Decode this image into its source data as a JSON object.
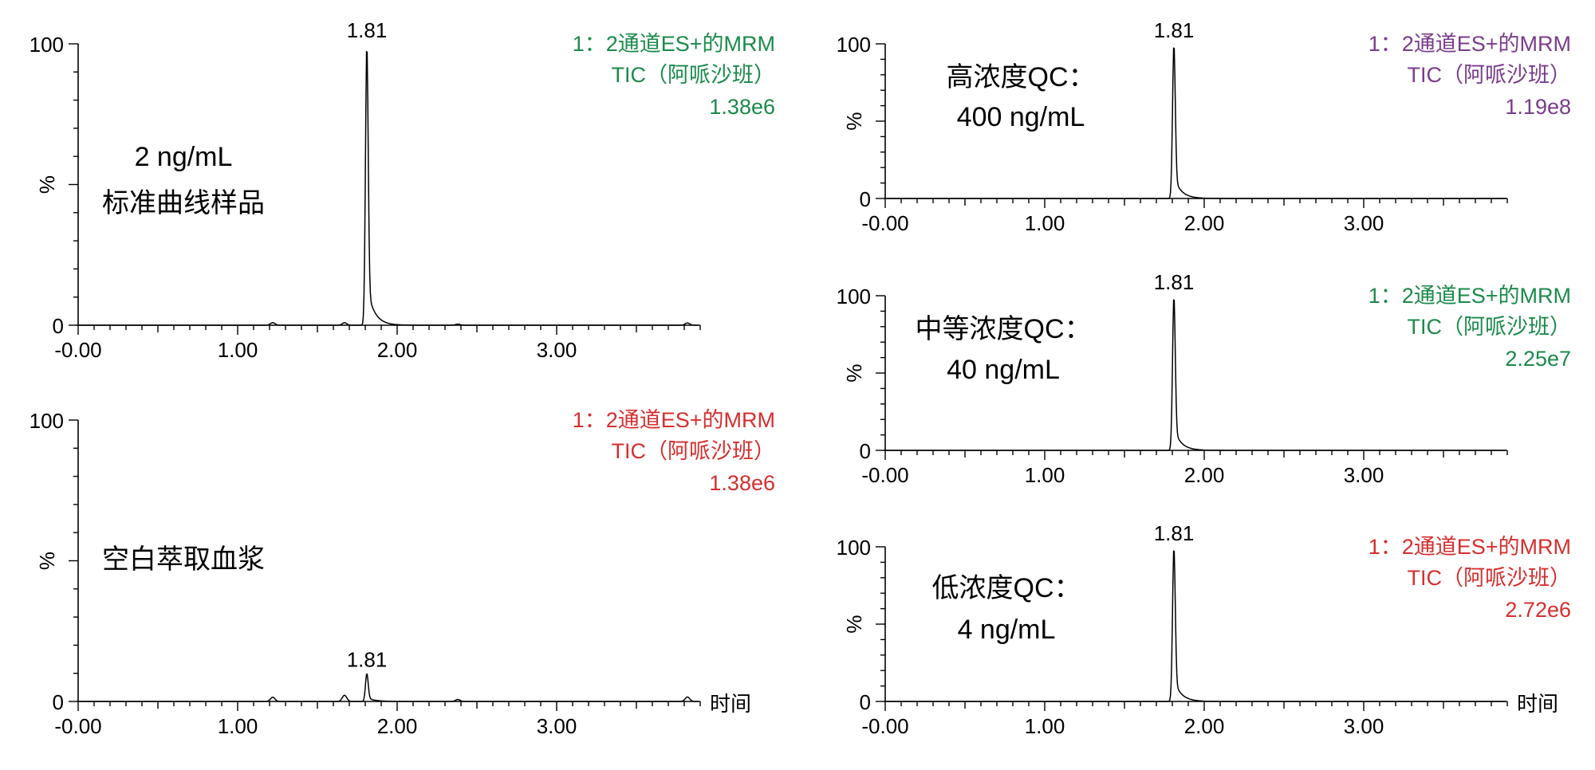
{
  "shared": {
    "x_ticks": [
      "-0.00",
      "1.00",
      "2.00",
      "3.00"
    ],
    "y_ticks": [
      "100",
      "0"
    ],
    "ylabel": "%",
    "xlabel": "时间"
  },
  "chart_data": [
    {
      "type": "line",
      "title_lines": [
        "2 ng/mL",
        "标准曲线样品"
      ],
      "legend_lines": [
        "1：2通道ES+的MRM",
        "TIC（阿哌沙班）",
        "1.38e6"
      ],
      "legend_color": "#1b8a4a",
      "peak_label": "1.81",
      "peak_rt": 1.81,
      "peak_height": 100,
      "xlim": [
        0,
        3.95
      ],
      "ylim": [
        0,
        100
      ],
      "show_xlabel": false,
      "noise": [
        [
          1.22,
          0.9
        ],
        [
          1.67,
          0.9
        ],
        [
          2.38,
          0.4
        ],
        [
          3.82,
          0.8
        ]
      ]
    },
    {
      "type": "line",
      "title_lines": [
        "空白萃取血浆"
      ],
      "legend_lines": [
        "1：2通道ES+的MRM",
        "TIC（阿哌沙班）",
        "1.38e6"
      ],
      "legend_color": "#d62e2e",
      "peak_label": "1.81",
      "peak_rt": 1.81,
      "peak_height": 10,
      "xlim": [
        0,
        3.95
      ],
      "ylim": [
        0,
        100
      ],
      "show_xlabel": true,
      "noise": [
        [
          1.22,
          1.5
        ],
        [
          1.67,
          2.2
        ],
        [
          2.38,
          0.7
        ],
        [
          3.82,
          1.6
        ]
      ]
    },
    {
      "type": "line",
      "title_lines": [
        "高浓度QC：",
        "400 ng/mL"
      ],
      "legend_lines": [
        "1：2通道ES+的MRM",
        "TIC（阿哌沙班）",
        "1.19e8"
      ],
      "legend_color": "#7a3b8c",
      "peak_label": "1.81",
      "peak_rt": 1.81,
      "peak_height": 100,
      "xlim": [
        0,
        3.95
      ],
      "ylim": [
        0,
        100
      ],
      "show_xlabel": false,
      "noise": []
    },
    {
      "type": "line",
      "title_lines": [
        "中等浓度QC：",
        "40 ng/mL"
      ],
      "legend_lines": [
        "1：2通道ES+的MRM",
        "TIC（阿哌沙班）",
        "2.25e7"
      ],
      "legend_color": "#1b8a4a",
      "peak_label": "1.81",
      "peak_rt": 1.81,
      "peak_height": 100,
      "xlim": [
        0,
        3.95
      ],
      "ylim": [
        0,
        100
      ],
      "show_xlabel": false,
      "noise": []
    },
    {
      "type": "line",
      "title_lines": [
        "低浓度QC：",
        "4 ng/mL"
      ],
      "legend_lines": [
        "1：2通道ES+的MRM",
        "TIC（阿哌沙班）",
        "2.72e6"
      ],
      "legend_color": "#d62e2e",
      "peak_label": "1.81",
      "peak_rt": 1.81,
      "peak_height": 100,
      "xlim": [
        0,
        3.95
      ],
      "ylim": [
        0,
        100
      ],
      "show_xlabel": true,
      "noise": []
    }
  ]
}
